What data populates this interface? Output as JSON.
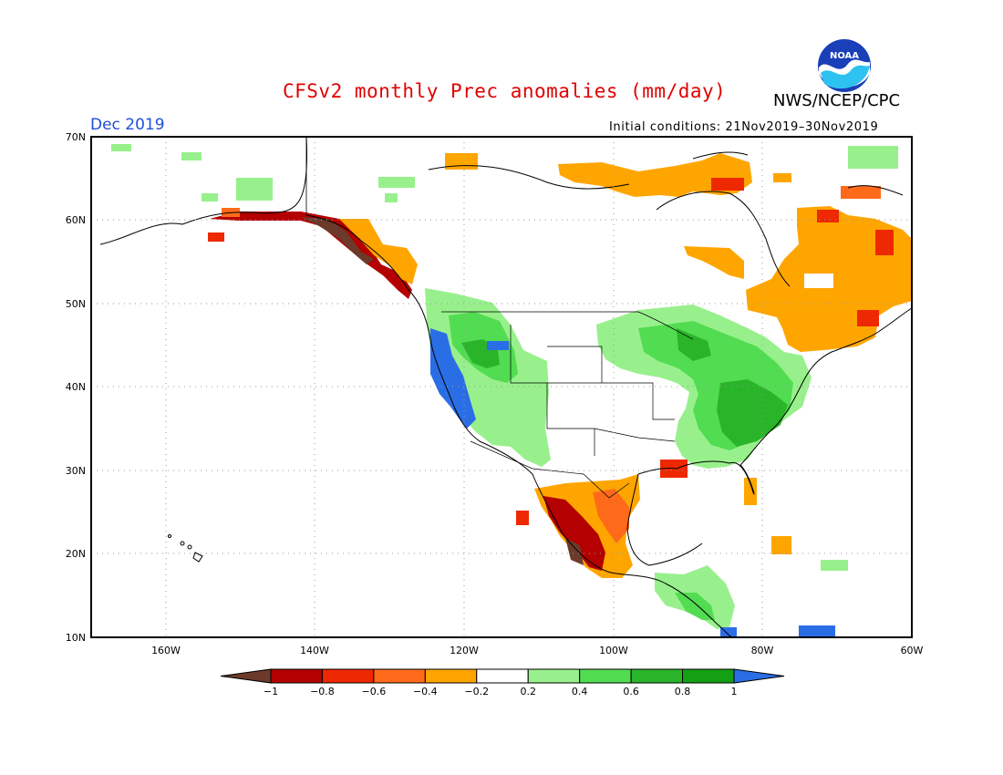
{
  "header": {
    "title": "CFSv2 monthly Prec anomalies (mm/day)",
    "agency": "NWS/NCEP/CPC",
    "month": "Dec 2019",
    "initial_conditions": "Initial conditions: 21Nov2019–30Nov2019",
    "logo_text": "NOAA"
  },
  "axes": {
    "lat_labels": [
      "70N",
      "60N",
      "50N",
      "40N",
      "30N",
      "20N",
      "10N"
    ],
    "lon_labels": [
      "160W",
      "140W",
      "120W",
      "100W",
      "80W",
      "60W"
    ]
  },
  "colorbar": {
    "levels": [
      "−1",
      "−0.8",
      "−0.6",
      "−0.4",
      "−0.2",
      "0.2",
      "0.4",
      "0.6",
      "0.8",
      "1"
    ],
    "colors": [
      "#6b3a2a",
      "#b40000",
      "#ee2800",
      "#ff6a1a",
      "#ffa500",
      "#ffffff",
      "#98f08c",
      "#52dc52",
      "#2ab42a",
      "#13a013",
      "#2a6ee6"
    ]
  },
  "map_colors": {
    "land_outline": "#000000",
    "grid": "#999999"
  }
}
